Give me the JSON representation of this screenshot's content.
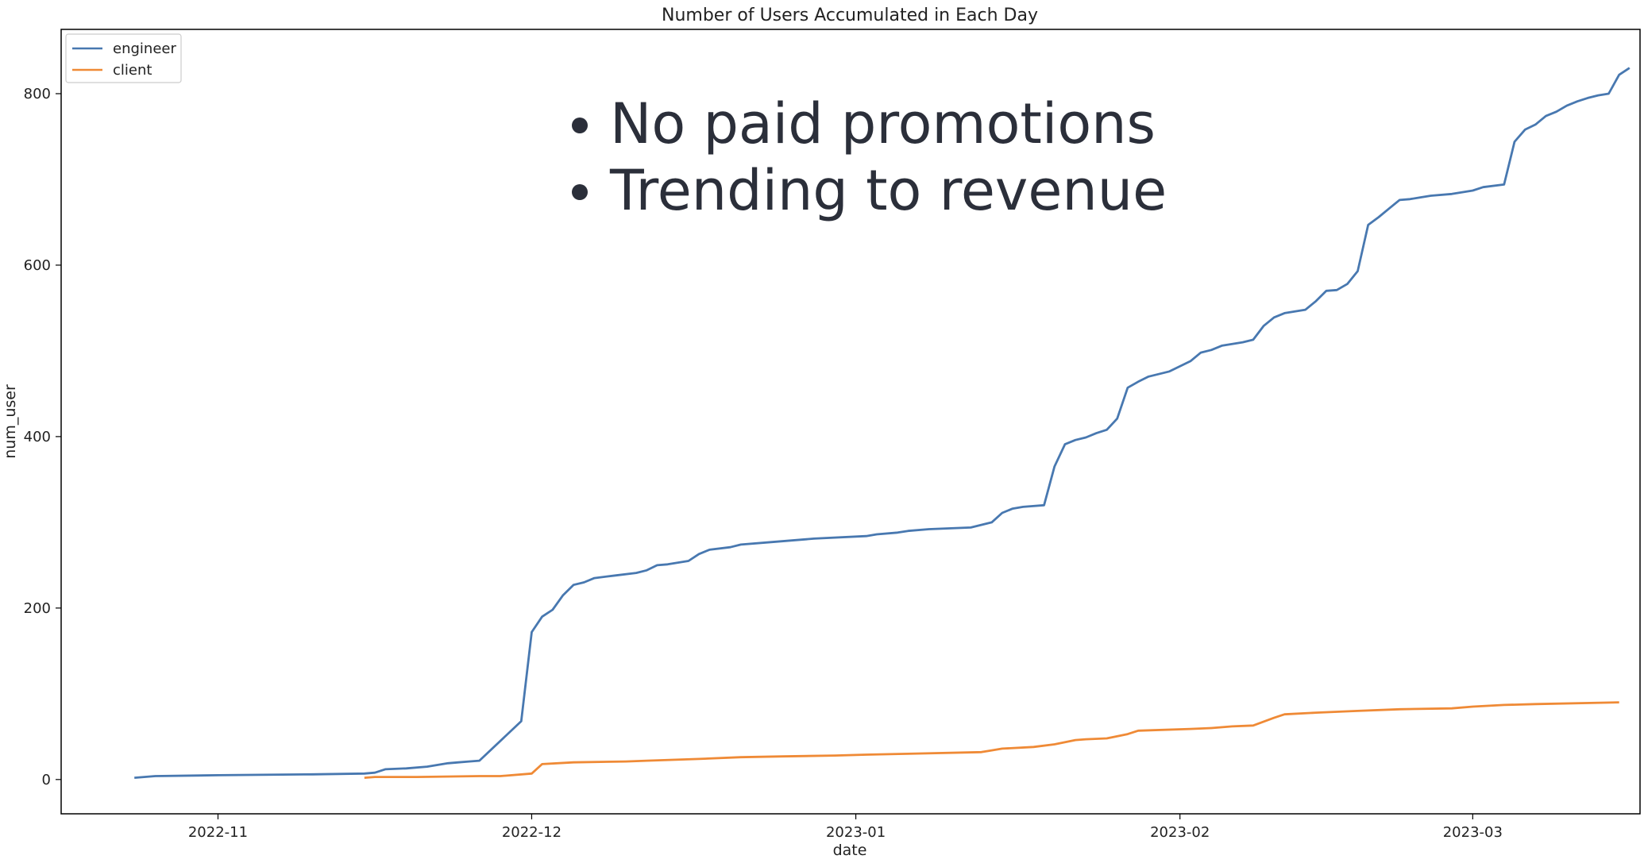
{
  "chart_data": {
    "type": "line",
    "title": "Number of Users Accumulated in Each Day",
    "xlabel": "date",
    "ylabel": "num_user",
    "xlim": [
      "2022-10-17",
      "2023-03-17"
    ],
    "ylim": [
      -40,
      875
    ],
    "x_ticks": [
      "2022-11",
      "2022-12",
      "2023-01",
      "2023-02",
      "2023-03"
    ],
    "y_ticks": [
      0,
      200,
      400,
      600,
      800
    ],
    "grid": false,
    "legend_position": "upper-left",
    "annotations": [
      "No paid promotions",
      "Trending to revenue"
    ],
    "series": [
      {
        "name": "engineer",
        "color": "#4878b0",
        "points": [
          [
            "2022-10-24",
            2
          ],
          [
            "2022-10-26",
            4
          ],
          [
            "2022-11-01",
            5
          ],
          [
            "2022-11-10",
            6
          ],
          [
            "2022-11-15",
            7
          ],
          [
            "2022-11-16",
            8
          ],
          [
            "2022-11-17",
            12
          ],
          [
            "2022-11-19",
            13
          ],
          [
            "2022-11-21",
            15
          ],
          [
            "2022-11-23",
            19
          ],
          [
            "2022-11-24",
            20
          ],
          [
            "2022-11-25",
            21
          ],
          [
            "2022-11-26",
            22
          ],
          [
            "2022-11-30",
            68
          ],
          [
            "2022-12-01",
            172
          ],
          [
            "2022-12-02",
            190
          ],
          [
            "2022-12-03",
            198
          ],
          [
            "2022-12-04",
            215
          ],
          [
            "2022-12-05",
            227
          ],
          [
            "2022-12-06",
            230
          ],
          [
            "2022-12-07",
            235
          ],
          [
            "2022-12-09",
            238
          ],
          [
            "2022-12-11",
            241
          ],
          [
            "2022-12-12",
            244
          ],
          [
            "2022-12-13",
            250
          ],
          [
            "2022-12-14",
            251
          ],
          [
            "2022-12-16",
            255
          ],
          [
            "2022-12-17",
            263
          ],
          [
            "2022-12-18",
            268
          ],
          [
            "2022-12-20",
            271
          ],
          [
            "2022-12-21",
            274
          ],
          [
            "2022-12-24",
            277
          ],
          [
            "2022-12-28",
            281
          ],
          [
            "2023-01-02",
            284
          ],
          [
            "2023-01-03",
            286
          ],
          [
            "2023-01-05",
            288
          ],
          [
            "2023-01-06",
            290
          ],
          [
            "2023-01-08",
            292
          ],
          [
            "2023-01-12",
            294
          ],
          [
            "2023-01-14",
            300
          ],
          [
            "2023-01-15",
            311
          ],
          [
            "2023-01-16",
            316
          ],
          [
            "2023-01-17",
            318
          ],
          [
            "2023-01-19",
            320
          ],
          [
            "2023-01-20",
            365
          ],
          [
            "2023-01-21",
            391
          ],
          [
            "2023-01-22",
            396
          ],
          [
            "2023-01-23",
            399
          ],
          [
            "2023-01-24",
            404
          ],
          [
            "2023-01-25",
            408
          ],
          [
            "2023-01-26",
            421
          ],
          [
            "2023-01-27",
            457
          ],
          [
            "2023-01-28",
            464
          ],
          [
            "2023-01-29",
            470
          ],
          [
            "2023-01-31",
            476
          ],
          [
            "2023-02-02",
            488
          ],
          [
            "2023-02-03",
            498
          ],
          [
            "2023-02-04",
            501
          ],
          [
            "2023-02-05",
            506
          ],
          [
            "2023-02-07",
            510
          ],
          [
            "2023-02-08",
            513
          ],
          [
            "2023-02-09",
            529
          ],
          [
            "2023-02-10",
            539
          ],
          [
            "2023-02-11",
            544
          ],
          [
            "2023-02-12",
            546
          ],
          [
            "2023-02-13",
            548
          ],
          [
            "2023-02-14",
            558
          ],
          [
            "2023-02-15",
            570
          ],
          [
            "2023-02-16",
            571
          ],
          [
            "2023-02-17",
            578
          ],
          [
            "2023-02-18",
            593
          ],
          [
            "2023-02-19",
            647
          ],
          [
            "2023-02-20",
            656
          ],
          [
            "2023-02-21",
            666
          ],
          [
            "2023-02-22",
            676
          ],
          [
            "2023-02-23",
            677
          ],
          [
            "2023-02-24",
            679
          ],
          [
            "2023-02-25",
            681
          ],
          [
            "2023-02-27",
            683
          ],
          [
            "2023-03-01",
            687
          ],
          [
            "2023-03-02",
            691
          ],
          [
            "2023-03-04",
            694
          ],
          [
            "2023-03-05",
            744
          ],
          [
            "2023-03-06",
            758
          ],
          [
            "2023-03-07",
            764
          ],
          [
            "2023-03-08",
            774
          ],
          [
            "2023-03-09",
            779
          ],
          [
            "2023-03-10",
            786
          ],
          [
            "2023-03-11",
            791
          ],
          [
            "2023-03-12",
            795
          ],
          [
            "2023-03-13",
            798
          ],
          [
            "2023-03-14",
            800
          ],
          [
            "2023-03-15",
            822
          ],
          [
            "2023-03-16",
            830
          ]
        ]
      },
      {
        "name": "client",
        "color": "#ef8a36",
        "points": [
          [
            "2022-11-15",
            2
          ],
          [
            "2022-11-16",
            3
          ],
          [
            "2022-11-20",
            3
          ],
          [
            "2022-11-26",
            4
          ],
          [
            "2022-11-28",
            4
          ],
          [
            "2022-12-01",
            7
          ],
          [
            "2022-12-02",
            18
          ],
          [
            "2022-12-05",
            20
          ],
          [
            "2022-12-10",
            21
          ],
          [
            "2022-12-12",
            22
          ],
          [
            "2022-12-17",
            24
          ],
          [
            "2022-12-21",
            26
          ],
          [
            "2022-12-25",
            27
          ],
          [
            "2022-12-30",
            28
          ],
          [
            "2023-01-02",
            29
          ],
          [
            "2023-01-06",
            30
          ],
          [
            "2023-01-13",
            32
          ],
          [
            "2023-01-14",
            34
          ],
          [
            "2023-01-15",
            36
          ],
          [
            "2023-01-18",
            38
          ],
          [
            "2023-01-20",
            41
          ],
          [
            "2023-01-22",
            46
          ],
          [
            "2023-01-23",
            47
          ],
          [
            "2023-01-25",
            48
          ],
          [
            "2023-01-27",
            53
          ],
          [
            "2023-01-28",
            57
          ],
          [
            "2023-02-02",
            59
          ],
          [
            "2023-02-04",
            60
          ],
          [
            "2023-02-06",
            62
          ],
          [
            "2023-02-08",
            63
          ],
          [
            "2023-02-10",
            72
          ],
          [
            "2023-02-11",
            76
          ],
          [
            "2023-02-14",
            78
          ],
          [
            "2023-02-18",
            80
          ],
          [
            "2023-02-22",
            82
          ],
          [
            "2023-02-27",
            83
          ],
          [
            "2023-03-01",
            85
          ],
          [
            "2023-03-04",
            87
          ],
          [
            "2023-03-07",
            88
          ],
          [
            "2023-03-15",
            90
          ]
        ]
      }
    ]
  }
}
